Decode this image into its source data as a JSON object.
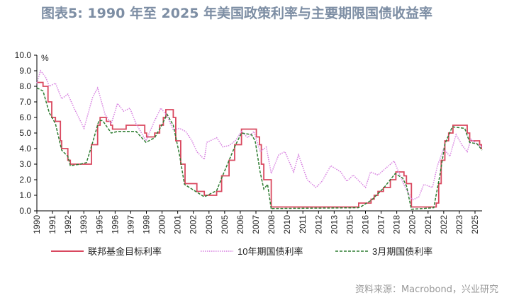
{
  "title": "图表5:  1990 年至 2025 年美国政策利率与主要期限国债收益率",
  "source": "资料来源：Macrobond，兴业研究",
  "chart_data": {
    "type": "line",
    "title": "图表5:  1990 年至 2025 年美国政策利率与主要期限国债收益率",
    "ylabel": "%",
    "xlabel": "",
    "ylim": [
      0,
      10
    ],
    "xlim": [
      1990,
      2025.9
    ],
    "yticks": [
      "0.0",
      "1.0",
      "2.0",
      "3.0",
      "4.0",
      "5.0",
      "6.0",
      "7.0",
      "8.0",
      "9.0",
      "10.0"
    ],
    "xticks": [
      "1990",
      "1991",
      "1992",
      "1993",
      "1995",
      "1996",
      "1997",
      "1998",
      "2000",
      "2001",
      "2002",
      "2003",
      "2005",
      "2006",
      "2007",
      "2008",
      "2010",
      "2011",
      "2012",
      "2013",
      "2015",
      "2016",
      "2017",
      "2018",
      "2020",
      "2021",
      "2022",
      "2023",
      "2025"
    ],
    "legend_position": "bottom",
    "series": [
      {
        "name": "联邦基金目标利率",
        "color": "#d9485f",
        "style": "solid",
        "step": true,
        "points": [
          [
            1990,
            8.25
          ],
          [
            1990.5,
            8.0
          ],
          [
            1990.9,
            7.0
          ],
          [
            1991.2,
            6.0
          ],
          [
            1991.5,
            5.75
          ],
          [
            1991.9,
            4.5
          ],
          [
            1992.0,
            4.0
          ],
          [
            1992.5,
            3.25
          ],
          [
            1992.7,
            3.0
          ],
          [
            1994.1,
            3.0
          ],
          [
            1994.4,
            4.25
          ],
          [
            1994.9,
            5.5
          ],
          [
            1995.1,
            6.0
          ],
          [
            1995.6,
            5.75
          ],
          [
            1995.95,
            5.5
          ],
          [
            1996.1,
            5.25
          ],
          [
            1997.2,
            5.5
          ],
          [
            1998.7,
            5.0
          ],
          [
            1998.85,
            4.75
          ],
          [
            1999.5,
            5.0
          ],
          [
            1999.9,
            5.5
          ],
          [
            2000.2,
            6.0
          ],
          [
            2000.4,
            6.5
          ],
          [
            2001.0,
            6.0
          ],
          [
            2001.2,
            4.5
          ],
          [
            2001.6,
            3.0
          ],
          [
            2001.95,
            1.75
          ],
          [
            2002.9,
            1.25
          ],
          [
            2003.5,
            1.0
          ],
          [
            2004.5,
            1.25
          ],
          [
            2004.9,
            2.25
          ],
          [
            2005.5,
            3.25
          ],
          [
            2005.95,
            4.25
          ],
          [
            2006.5,
            5.25
          ],
          [
            2007.7,
            4.75
          ],
          [
            2007.95,
            4.25
          ],
          [
            2008.1,
            3.0
          ],
          [
            2008.3,
            2.0
          ],
          [
            2008.9,
            0.25
          ],
          [
            2015.95,
            0.5
          ],
          [
            2016.95,
            0.75
          ],
          [
            2017.2,
            1.0
          ],
          [
            2017.5,
            1.25
          ],
          [
            2017.95,
            1.5
          ],
          [
            2018.5,
            2.0
          ],
          [
            2018.95,
            2.5
          ],
          [
            2019.6,
            2.25
          ],
          [
            2019.8,
            1.75
          ],
          [
            2020.2,
            0.25
          ],
          [
            2022.2,
            0.5
          ],
          [
            2022.4,
            1.75
          ],
          [
            2022.6,
            3.25
          ],
          [
            2022.9,
            4.5
          ],
          [
            2023.2,
            5.0
          ],
          [
            2023.55,
            5.5
          ],
          [
            2024.7,
            5.0
          ],
          [
            2024.9,
            4.5
          ],
          [
            2025.7,
            4.25
          ],
          [
            2025.85,
            4.0
          ],
          [
            2025.9,
            4.0
          ]
        ]
      },
      {
        "name": "10年期国债利率",
        "color": "#d77fe0",
        "style": "dotted",
        "step": false,
        "points": [
          [
            1990,
            8.2
          ],
          [
            1990.3,
            9.0
          ],
          [
            1990.7,
            8.6
          ],
          [
            1991,
            8.0
          ],
          [
            1991.5,
            8.2
          ],
          [
            1992,
            7.2
          ],
          [
            1992.5,
            7.5
          ],
          [
            1993,
            6.6
          ],
          [
            1993.8,
            5.3
          ],
          [
            1994.5,
            7.3
          ],
          [
            1994.9,
            7.9
          ],
          [
            1995.5,
            6.2
          ],
          [
            1996,
            5.6
          ],
          [
            1996.5,
            6.9
          ],
          [
            1997,
            6.4
          ],
          [
            1997.5,
            6.6
          ],
          [
            1998,
            5.6
          ],
          [
            1998.8,
            4.5
          ],
          [
            1999.5,
            5.8
          ],
          [
            2000,
            6.6
          ],
          [
            2000.5,
            6.1
          ],
          [
            2001,
            5.2
          ],
          [
            2001.5,
            5.3
          ],
          [
            2002,
            5.1
          ],
          [
            2002.5,
            4.5
          ],
          [
            2002.9,
            3.8
          ],
          [
            2003.5,
            3.3
          ],
          [
            2003.7,
            4.4
          ],
          [
            2004.5,
            4.7
          ],
          [
            2005,
            4.1
          ],
          [
            2005.5,
            4.2
          ],
          [
            2006,
            4.5
          ],
          [
            2006.5,
            5.1
          ],
          [
            2007,
            4.7
          ],
          [
            2007.5,
            5.1
          ],
          [
            2008,
            3.8
          ],
          [
            2008.5,
            4.1
          ],
          [
            2008.9,
            2.4
          ],
          [
            2009.5,
            3.6
          ],
          [
            2010,
            3.8
          ],
          [
            2010.7,
            2.5
          ],
          [
            2011.1,
            3.6
          ],
          [
            2011.8,
            2.0
          ],
          [
            2012.5,
            1.5
          ],
          [
            2013,
            1.9
          ],
          [
            2013.7,
            2.9
          ],
          [
            2014.5,
            2.5
          ],
          [
            2015,
            1.9
          ],
          [
            2015.5,
            2.3
          ],
          [
            2016.5,
            1.5
          ],
          [
            2016.9,
            2.5
          ],
          [
            2017.5,
            2.3
          ],
          [
            2018.8,
            3.2
          ],
          [
            2019.7,
            1.5
          ],
          [
            2020.3,
            0.7
          ],
          [
            2020.8,
            0.9
          ],
          [
            2021.2,
            1.7
          ],
          [
            2021.9,
            1.5
          ],
          [
            2022.3,
            2.9
          ],
          [
            2022.8,
            4.0
          ],
          [
            2023.3,
            3.5
          ],
          [
            2023.8,
            4.9
          ],
          [
            2024.3,
            4.2
          ],
          [
            2024.7,
            3.8
          ],
          [
            2025,
            4.6
          ],
          [
            2025.5,
            4.3
          ],
          [
            2025.9,
            4.1
          ]
        ]
      },
      {
        "name": "3月期国债利率",
        "color": "#2e7d32",
        "style": "dashed",
        "step": false,
        "points": [
          [
            1990,
            7.9
          ],
          [
            1990.5,
            7.7
          ],
          [
            1991,
            6.3
          ],
          [
            1991.5,
            5.6
          ],
          [
            1992,
            3.9
          ],
          [
            1992.5,
            3.5
          ],
          [
            1992.7,
            2.9
          ],
          [
            1993.5,
            3.0
          ],
          [
            1994,
            3.1
          ],
          [
            1994.5,
            4.4
          ],
          [
            1995,
            5.8
          ],
          [
            1995.3,
            5.8
          ],
          [
            1996,
            5.0
          ],
          [
            1996.5,
            5.1
          ],
          [
            1997.3,
            5.1
          ],
          [
            1998,
            5.1
          ],
          [
            1998.8,
            4.4
          ],
          [
            1999.5,
            4.7
          ],
          [
            2000,
            5.4
          ],
          [
            2000.5,
            6.2
          ],
          [
            2001,
            5.5
          ],
          [
            2001.5,
            3.6
          ],
          [
            2001.9,
            1.7
          ],
          [
            2002.9,
            1.2
          ],
          [
            2003.5,
            0.9
          ],
          [
            2004.5,
            1.3
          ],
          [
            2005,
            2.3
          ],
          [
            2006,
            4.2
          ],
          [
            2006.5,
            5.0
          ],
          [
            2007.3,
            4.9
          ],
          [
            2007.6,
            4.5
          ],
          [
            2008,
            2.5
          ],
          [
            2008.3,
            1.4
          ],
          [
            2008.6,
            1.7
          ],
          [
            2008.9,
            0.1
          ],
          [
            2009,
            0.15
          ],
          [
            2015.9,
            0.2
          ],
          [
            2016.2,
            0.3
          ],
          [
            2017,
            0.7
          ],
          [
            2017.5,
            1.1
          ],
          [
            2018,
            1.5
          ],
          [
            2018.9,
            2.4
          ],
          [
            2019.5,
            2.1
          ],
          [
            2019.8,
            1.6
          ],
          [
            2020.2,
            0.1
          ],
          [
            2022,
            0.2
          ],
          [
            2022.5,
            2.3
          ],
          [
            2022.9,
            4.3
          ],
          [
            2023.5,
            5.4
          ],
          [
            2024.5,
            5.3
          ],
          [
            2024.9,
            4.4
          ],
          [
            2025.5,
            4.3
          ],
          [
            2025.9,
            3.9
          ]
        ]
      }
    ]
  }
}
